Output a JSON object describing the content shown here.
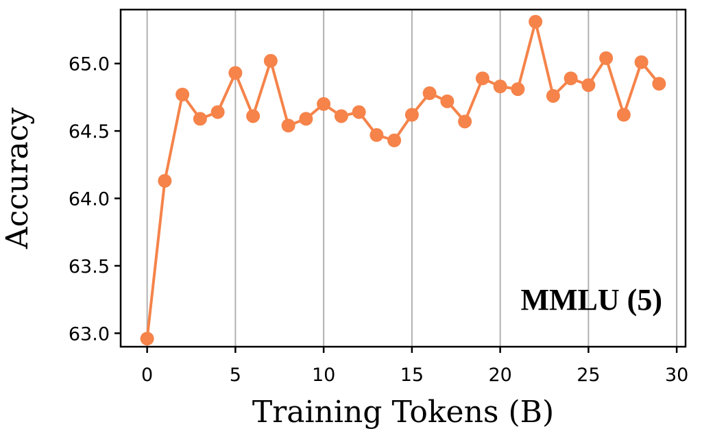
{
  "chart_data": {
    "type": "line",
    "title": "",
    "annotation": "MMLU (5)",
    "xlabel": "Training Tokens (B)",
    "ylabel": "Accuracy",
    "xlim": [
      -1.5,
      30.5
    ],
    "ylim": [
      62.9,
      65.4
    ],
    "xticks": [
      0,
      5,
      10,
      15,
      20,
      25,
      30
    ],
    "xtick_labels": [
      "0",
      "5",
      "10",
      "15",
      "20",
      "25",
      "30"
    ],
    "yticks": [
      63.0,
      63.5,
      64.0,
      64.5,
      65.0
    ],
    "ytick_labels": [
      "63.0",
      "63.5",
      "64.0",
      "64.5",
      "65.0"
    ],
    "grid": "vertical",
    "series": [
      {
        "name": "MMLU (5)",
        "color": "#f5834a",
        "x": [
          0,
          1,
          2,
          3,
          4,
          5,
          6,
          7,
          8,
          9,
          10,
          11,
          12,
          13,
          14,
          15,
          16,
          17,
          18,
          19,
          20,
          21,
          22,
          23,
          24,
          25,
          26,
          27,
          28,
          29
        ],
        "values": [
          62.96,
          64.13,
          64.77,
          64.59,
          64.64,
          64.93,
          64.61,
          65.02,
          64.54,
          64.59,
          64.7,
          64.61,
          64.64,
          64.47,
          64.43,
          64.62,
          64.78,
          64.72,
          64.57,
          64.89,
          64.83,
          64.81,
          65.31,
          64.76,
          64.89,
          64.84,
          65.04,
          64.62,
          65.01,
          64.85
        ]
      }
    ]
  }
}
